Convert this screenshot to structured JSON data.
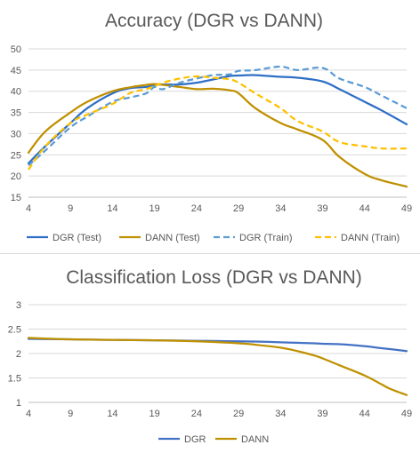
{
  "chart_data": [
    {
      "type": "line",
      "title": "Accuracy (DGR vs DANN)",
      "xlabel": "",
      "ylabel": "",
      "x_ticks": [
        4,
        9,
        14,
        19,
        24,
        29,
        34,
        39,
        44,
        49
      ],
      "y_ticks": [
        15,
        20,
        25,
        30,
        35,
        40,
        45,
        50
      ],
      "xlim": [
        4,
        49
      ],
      "ylim": [
        15,
        50
      ],
      "grid": "horizontal",
      "legend_position": "bottom",
      "x": [
        4,
        6,
        9,
        11,
        14,
        16,
        18,
        19,
        20,
        22,
        24,
        26,
        28,
        29,
        31,
        34,
        36,
        39,
        41,
        44,
        46,
        49
      ],
      "series": [
        {
          "name": "DGR (Test)",
          "color": "#2E6FC5",
          "dash": "solid",
          "values": [
            23,
            27,
            32.5,
            36,
            39.5,
            40.7,
            41,
            41.5,
            41.6,
            41.6,
            42,
            42.8,
            43.6,
            43.7,
            43.8,
            43.4,
            43.2,
            42.3,
            40.5,
            37.5,
            35.5,
            32.2
          ]
        },
        {
          "name": "DANN (Test)",
          "color": "#BF9000",
          "dash": "solid",
          "values": [
            25.5,
            30.5,
            35,
            37.5,
            40,
            40.9,
            41.5,
            41.7,
            41.5,
            41,
            40.5,
            40.6,
            40.2,
            39.5,
            36,
            32.5,
            31,
            28.5,
            24.5,
            20.5,
            19,
            17.5
          ]
        },
        {
          "name": "DGR (Train)",
          "color": "#5B9BD5",
          "dash": "dashed",
          "values": [
            22.5,
            26,
            31.5,
            34,
            37.5,
            38.5,
            39.5,
            41,
            40.5,
            42,
            43,
            43.8,
            44,
            44.8,
            45,
            45.8,
            45,
            45.5,
            43,
            41,
            39,
            36
          ]
        },
        {
          "name": "DANN (Train)",
          "color": "#FFC000",
          "dash": "dashed",
          "values": [
            21.5,
            27,
            32.5,
            34.5,
            37,
            39.5,
            40.5,
            41.2,
            42,
            43,
            43.5,
            43.2,
            42.8,
            42,
            39.5,
            36,
            33,
            30.5,
            28,
            27,
            26.5,
            26.5
          ]
        }
      ]
    },
    {
      "type": "line",
      "title": "Classification Loss (DGR vs DANN)",
      "xlabel": "",
      "ylabel": "",
      "x_ticks": [
        4,
        9,
        14,
        19,
        24,
        29,
        34,
        39,
        44,
        49
      ],
      "y_ticks": [
        1,
        1.5,
        2,
        2.5,
        3
      ],
      "y_tick_labels": [
        "1",
        "1.5",
        "2",
        "2.5",
        "3"
      ],
      "xlim": [
        4,
        49
      ],
      "ylim": [
        1,
        3
      ],
      "grid": "horizontal",
      "legend_position": "bottom",
      "x": [
        4,
        9,
        14,
        19,
        24,
        29,
        31,
        34,
        36,
        38,
        39,
        41,
        44,
        46,
        47,
        49
      ],
      "series": [
        {
          "name": "DGR",
          "color": "#4472C4",
          "dash": "solid",
          "values": [
            2.3,
            2.29,
            2.28,
            2.27,
            2.26,
            2.25,
            2.245,
            2.23,
            2.22,
            2.21,
            2.2,
            2.19,
            2.15,
            2.11,
            2.09,
            2.05
          ]
        },
        {
          "name": "DANN",
          "color": "#BF9000",
          "dash": "solid",
          "values": [
            2.32,
            2.29,
            2.28,
            2.27,
            2.25,
            2.21,
            2.18,
            2.12,
            2.05,
            1.96,
            1.9,
            1.76,
            1.55,
            1.37,
            1.28,
            1.15
          ]
        }
      ]
    }
  ]
}
